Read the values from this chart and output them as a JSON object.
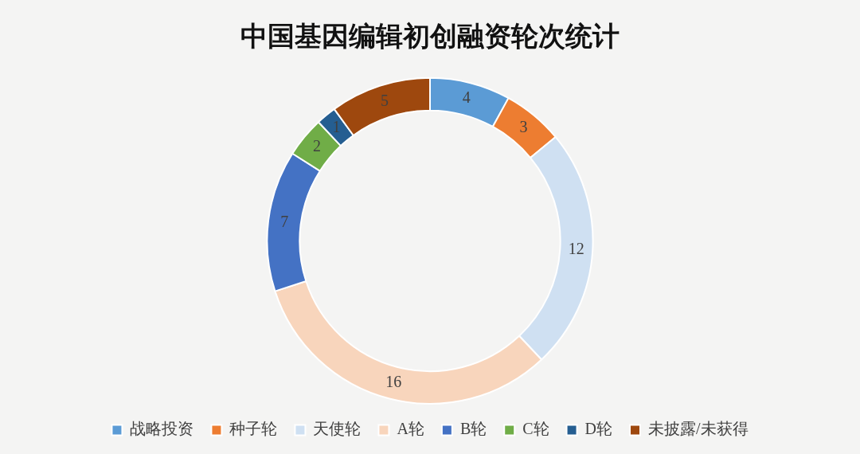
{
  "chart_data": {
    "type": "donut",
    "title": "中国基因编辑初创融资轮次统计",
    "categories": [
      "战略投资",
      "种子轮",
      "天使轮",
      "A轮",
      "B轮",
      "C轮",
      "D轮",
      "未披露/未获得"
    ],
    "values": [
      4,
      3,
      12,
      16,
      7,
      2,
      1,
      5
    ],
    "colors": [
      "#5b9bd5",
      "#ed7d31",
      "#cfe0f2",
      "#f8d5bc",
      "#4472c4",
      "#70ad47",
      "#255e91",
      "#9e480e"
    ],
    "data_labels": true,
    "legend": "bottom"
  }
}
